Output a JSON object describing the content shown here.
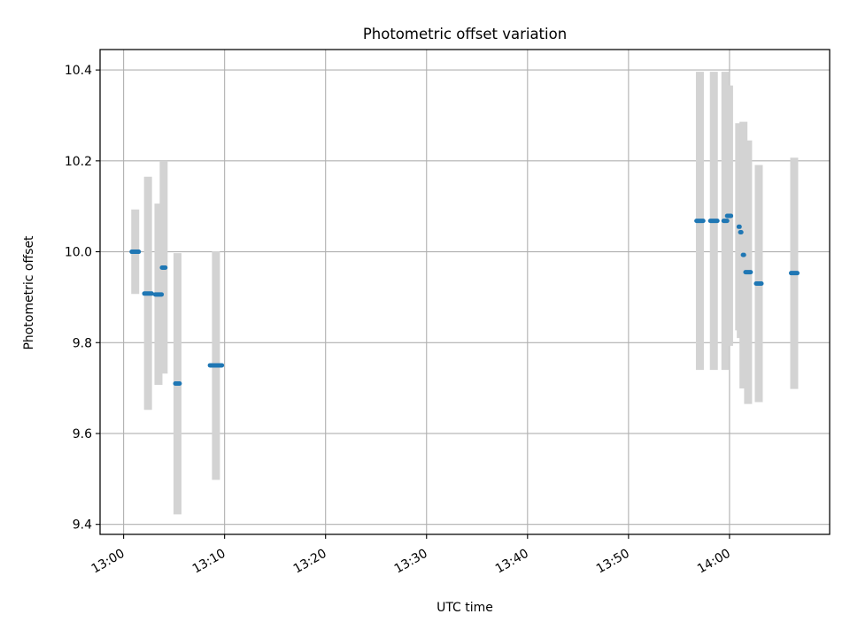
{
  "chart_data": {
    "type": "scatter",
    "title": "Photometric offset variation",
    "xlabel": "UTC time",
    "ylabel": "Photometric offset",
    "grid": true,
    "x_ticks": [
      "13:00",
      "13:10",
      "13:20",
      "13:30",
      "13:40",
      "13:50",
      "14:00"
    ],
    "y_ticks": [
      "9.4",
      "9.6",
      "9.8",
      "10.0",
      "10.2",
      "10.4"
    ],
    "xlim": [
      "12:57:40",
      "14:09:55"
    ],
    "ylim": [
      9.378,
      10.445
    ],
    "errorbar_color": "#d3d3d3",
    "marker_color": "#1f77b4",
    "points": [
      {
        "start": "13:00:48",
        "end": "13:01:30",
        "y": 10.0,
        "lo": 9.907,
        "hi": 10.093
      },
      {
        "start": "13:02:03",
        "end": "13:02:47",
        "y": 9.908,
        "lo": 9.652,
        "hi": 10.165
      },
      {
        "start": "13:03:08",
        "end": "13:03:46",
        "y": 9.906,
        "lo": 9.707,
        "hi": 10.106
      },
      {
        "start": "13:03:48",
        "end": "13:04:08",
        "y": 9.965,
        "lo": 9.732,
        "hi": 10.2
      },
      {
        "start": "13:05:07",
        "end": "13:05:33",
        "y": 9.71,
        "lo": 9.422,
        "hi": 9.997
      },
      {
        "start": "13:08:33",
        "end": "13:09:44",
        "y": 9.75,
        "lo": 9.498,
        "hi": 10.001
      },
      {
        "start": "13:56:44",
        "end": "13:57:24",
        "y": 10.068,
        "lo": 9.74,
        "hi": 10.396
      },
      {
        "start": "13:58:06",
        "end": "13:58:48",
        "y": 10.068,
        "lo": 9.74,
        "hi": 10.396
      },
      {
        "start": "13:59:25",
        "end": "13:59:46",
        "y": 10.068,
        "lo": 9.74,
        "hi": 10.396
      },
      {
        "start": "13:59:46",
        "end": "14:00:09",
        "y": 10.079,
        "lo": 9.793,
        "hi": 10.366
      },
      {
        "start": "14:00:55",
        "end": "14:01:00",
        "y": 10.055,
        "lo": 9.827,
        "hi": 10.283
      },
      {
        "start": "14:01:04",
        "end": "14:01:10",
        "y": 10.043,
        "lo": 9.81,
        "hi": 10.276
      },
      {
        "start": "14:01:20",
        "end": "14:01:26",
        "y": 9.993,
        "lo": 9.699,
        "hi": 10.286
      },
      {
        "start": "14:01:35",
        "end": "14:02:06",
        "y": 9.955,
        "lo": 9.665,
        "hi": 10.245
      },
      {
        "start": "14:02:38",
        "end": "14:03:10",
        "y": 9.93,
        "lo": 9.669,
        "hi": 10.191
      },
      {
        "start": "14:06:06",
        "end": "14:06:43",
        "y": 9.953,
        "lo": 9.698,
        "hi": 10.207
      }
    ]
  }
}
